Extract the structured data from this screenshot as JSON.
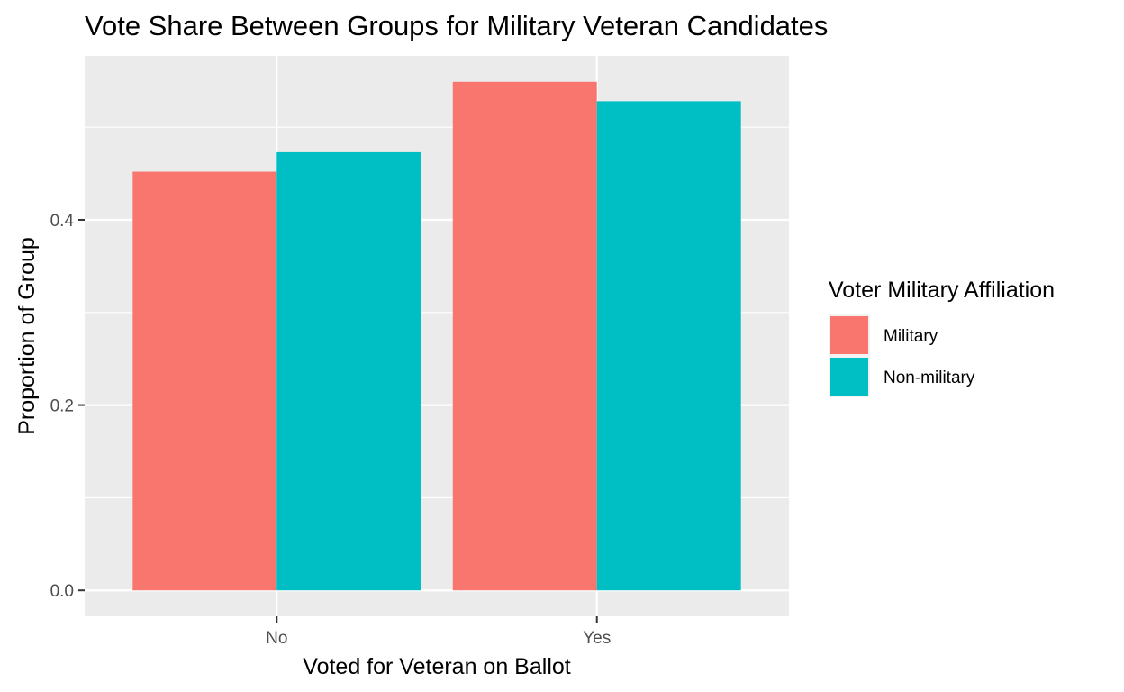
{
  "chart_data": {
    "type": "bar",
    "title": "Vote Share Between Groups for Military Veteran Candidates",
    "xlabel": "Voted for Veteran on Ballot",
    "ylabel": "Proportion of Group",
    "categories": [
      "No",
      "Yes"
    ],
    "series": [
      {
        "name": "Military",
        "values": [
          0.452,
          0.549
        ],
        "color": "#F8766D"
      },
      {
        "name": "Non-military",
        "values": [
          0.473,
          0.528
        ],
        "color": "#00BFC4"
      }
    ],
    "ylim": [
      -0.028,
      0.577
    ],
    "yticks": [
      0.0,
      0.2,
      0.4
    ],
    "ytick_labels": [
      "0.0",
      "0.2",
      "0.4"
    ],
    "y_minor_ticks": [
      0.1,
      0.3,
      0.5
    ],
    "grid": true,
    "legend": {
      "title": "Voter Military Affiliation",
      "position": "right"
    },
    "colors": {
      "panel": "#EBEBEB",
      "grid": "#FFFFFF",
      "tick_text": "#4D4D4D"
    }
  }
}
